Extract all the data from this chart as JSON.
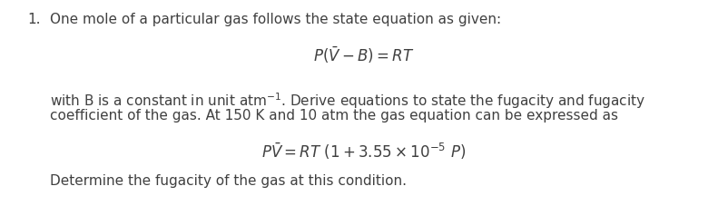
{
  "bg_color": "#ffffff",
  "text_color": "#404040",
  "fig_width": 8.02,
  "fig_height": 2.28,
  "dpi": 100,
  "line1_number": "1.",
  "line1_text": "One mole of a particular gas follows the state equation as given:",
  "eq1": "$P(\\bar{V} - B) = RT$",
  "line2_text": "with B is a constant in unit atm$^{-1}$. Derive equations to state the fugacity and fugacity",
  "line3_text": "coefficient of the gas. At 150 K and 10 atm the gas equation can be expressed as",
  "eq2": "$P\\bar{V} = RT\\ (1 + 3.55 \\times 10^{-5}\\ P)$",
  "line4_text": "Determine the fugacity of the gas at this condition.",
  "font_size_main": 11.0,
  "font_size_eq": 12.0
}
